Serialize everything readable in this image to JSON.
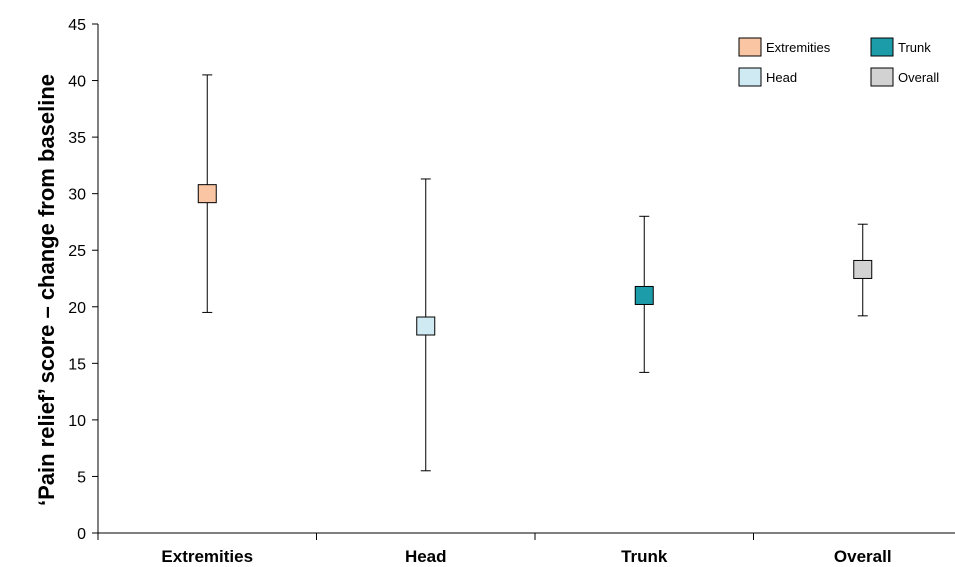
{
  "chart_data": {
    "type": "scatter",
    "title": "",
    "xlabel": "",
    "ylabel": "‘Pain relief’ score – change from baseline",
    "ylim": [
      0,
      45
    ],
    "yticks": [
      0,
      5,
      10,
      15,
      20,
      25,
      30,
      35,
      40,
      45
    ],
    "categories": [
      "Extremities",
      "Head",
      "Trunk",
      "Overall"
    ],
    "series": [
      {
        "name": "Extremities",
        "category": "Extremities",
        "value": 30.0,
        "error_low": 19.5,
        "error_high": 40.5,
        "color": "#F9C5A3"
      },
      {
        "name": "Head",
        "category": "Head",
        "value": 18.3,
        "error_low": 5.5,
        "error_high": 31.3,
        "color": "#CFEAF3"
      },
      {
        "name": "Trunk",
        "category": "Trunk",
        "value": 21.0,
        "error_low": 14.2,
        "error_high": 28.0,
        "color": "#1C9BA8"
      },
      {
        "name": "Overall",
        "category": "Overall",
        "value": 23.3,
        "error_low": 19.2,
        "error_high": 27.3,
        "color": "#D2D2D2"
      }
    ],
    "legend": {
      "position": "top-right",
      "entries": [
        {
          "label": "Extremities",
          "color": "#F9C5A3"
        },
        {
          "label": "Trunk",
          "color": "#1C9BA8"
        },
        {
          "label": "Head",
          "color": "#CFEAF3"
        },
        {
          "label": "Overall",
          "color": "#D2D2D2"
        }
      ]
    },
    "grid": false
  }
}
